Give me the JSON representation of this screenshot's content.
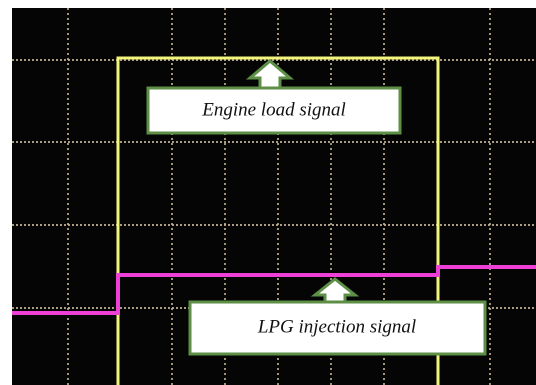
{
  "annotations": [
    {
      "label": "Engine load signal"
    },
    {
      "label": "LPG injection signal"
    }
  ]
}
